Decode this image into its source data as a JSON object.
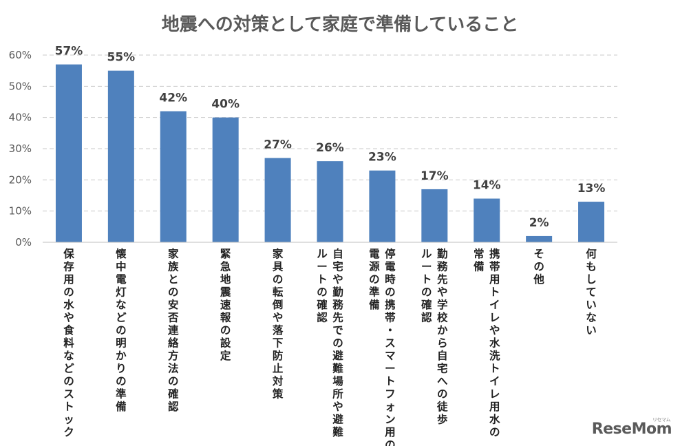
{
  "chart_data": {
    "type": "bar",
    "title": "地震への対策として家庭で準備していること",
    "ylim": [
      0,
      60
    ],
    "yticks": [
      0,
      10,
      20,
      30,
      40,
      50,
      60
    ],
    "ytick_labels": [
      "0%",
      "10%",
      "20%",
      "30%",
      "40%",
      "50%",
      "60%"
    ],
    "grid": true,
    "bar_color": "#4f81bd",
    "categories": [
      [
        "保存用の水や食料などのストック"
      ],
      [
        "懐中電灯などの明かりの準備"
      ],
      [
        "家族との安否連絡方法の確認"
      ],
      [
        "緊急地震速報の設定"
      ],
      [
        "家具の転倒や落下防止対策"
      ],
      [
        "自宅や勤務先での避難場所や避難",
        "ルートの確認"
      ],
      [
        "停電時の携帯・スマートフォン用の",
        "電源の準備"
      ],
      [
        "勤務先や学校から自宅への徒歩",
        "ルートの確認"
      ],
      [
        "携帯用トイレや水洗トイレ用水の",
        "常備"
      ],
      [
        "その他"
      ],
      [
        "何もしていない"
      ]
    ],
    "values": [
      57,
      55,
      42,
      40,
      27,
      26,
      23,
      17,
      14,
      2,
      13
    ],
    "data_labels": [
      "57%",
      "55%",
      "42%",
      "40%",
      "27%",
      "26%",
      "23%",
      "17%",
      "14%",
      "2%",
      "13%"
    ]
  },
  "watermark": "ReseMom"
}
